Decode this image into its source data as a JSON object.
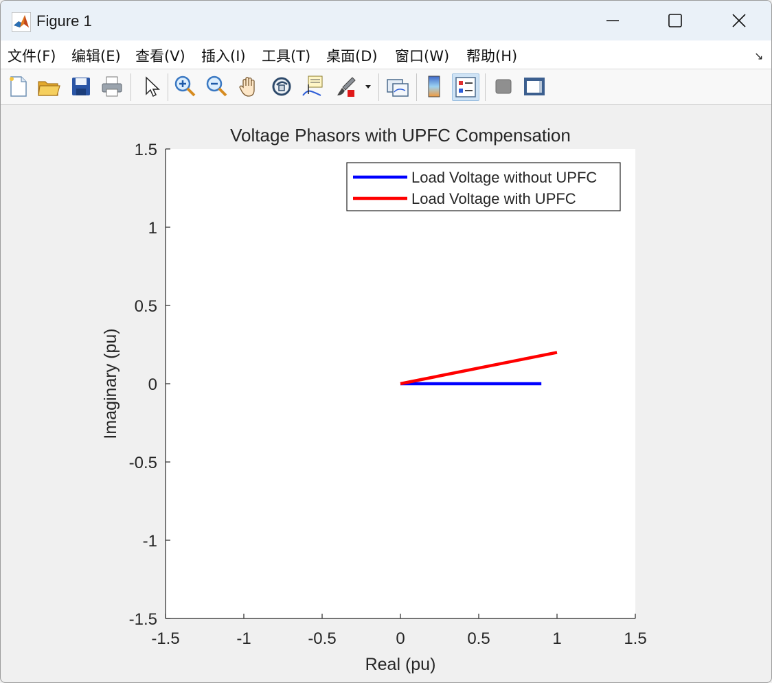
{
  "window": {
    "title": "Figure 1"
  },
  "menu": {
    "items": [
      "文件(F)",
      "编辑(E)",
      "查看(V)",
      "插入(I)",
      "工具(T)",
      "桌面(D)",
      "窗口(W)",
      "帮助(H)"
    ],
    "overflow_glyph": "↘"
  },
  "toolbar": {
    "tools": [
      "new-figure-icon",
      "open-file-icon",
      "save-icon",
      "print-icon",
      "select-pointer-icon",
      "zoom-in-icon",
      "zoom-out-icon",
      "pan-hand-icon",
      "rotate-3d-icon",
      "data-cursor-icon",
      "brush-icon",
      "link-plot-icon",
      "colorbar-icon",
      "legend-icon",
      "hide-plot-tools-icon",
      "show-plot-tools-icon"
    ]
  },
  "chart_data": {
    "type": "line",
    "title": "Voltage Phasors with UPFC Compensation",
    "xlabel": "Real (pu)",
    "ylabel": "Imaginary (pu)",
    "xlim": [
      -1.5,
      1.5
    ],
    "ylim": [
      -1.5,
      1.5
    ],
    "xticks": [
      "-1.5",
      "-1",
      "-0.5",
      "0",
      "0.5",
      "1",
      "1.5"
    ],
    "yticks": [
      "1.5",
      "1",
      "0.5",
      "0",
      "-0.5",
      "-1",
      "-1.5"
    ],
    "legend_position": "top-right",
    "grid": false,
    "series": [
      {
        "name": "Load Voltage without UPFC",
        "color": "#0000ff",
        "x": [
          0,
          0.9
        ],
        "y": [
          0,
          0
        ]
      },
      {
        "name": "Load Voltage with UPFC",
        "color": "#ff0000",
        "x": [
          0,
          1.0
        ],
        "y": [
          0,
          0.2
        ]
      }
    ]
  }
}
